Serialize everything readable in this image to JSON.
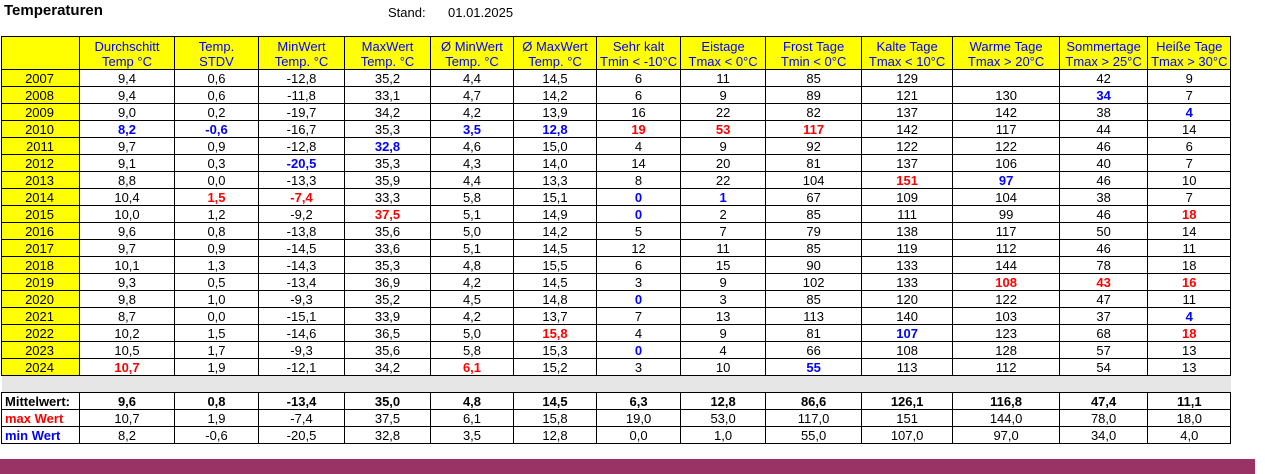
{
  "title": "Temperaturen",
  "stand_label": "Stand:",
  "stand_value": "01.01.2025",
  "headers": [
    [
      "",
      ""
    ],
    [
      "Durchschitt",
      "Temp °C"
    ],
    [
      "Temp.",
      "STDV"
    ],
    [
      "MinWert",
      "Temp. °C"
    ],
    [
      "MaxWert",
      "Temp. °C"
    ],
    [
      "Ø MinWert",
      "Temp. °C"
    ],
    [
      "Ø MaxWert",
      "Temp. °C"
    ],
    [
      "Sehr kalt",
      "Tmin < -10°C"
    ],
    [
      "Eistage",
      "Tmax < 0°C"
    ],
    [
      "Frost Tage",
      "Tmin < 0°C"
    ],
    [
      "Kalte Tage",
      "Tmax < 10°C"
    ],
    [
      "Warme Tage",
      "Tmax > 20°C"
    ],
    [
      "Sommertage",
      "Tmax > 25°C"
    ],
    [
      "Heiße Tage",
      "Tmax > 30°C"
    ]
  ],
  "rows": [
    [
      "2007",
      "9,4",
      "0,6",
      "-12,8",
      "35,2",
      "4,4",
      "14,5",
      "6",
      "11",
      "85",
      "129",
      "",
      "42",
      "9"
    ],
    [
      "2008",
      "9,4",
      "0,6",
      "-11,8",
      "33,1",
      "4,7",
      "14,2",
      "6",
      "9",
      "89",
      "121",
      "130",
      "34",
      "7"
    ],
    [
      "2009",
      "9,0",
      "0,2",
      "-19,7",
      "34,2",
      "4,2",
      "13,9",
      "16",
      "22",
      "82",
      "137",
      "142",
      "38",
      "4"
    ],
    [
      "2010",
      "8,2",
      "-0,6",
      "-16,7",
      "35,3",
      "3,5",
      "12,8",
      "19",
      "53",
      "117",
      "142",
      "117",
      "44",
      "14"
    ],
    [
      "2011",
      "9,7",
      "0,9",
      "-12,8",
      "32,8",
      "4,6",
      "15,0",
      "4",
      "9",
      "92",
      "122",
      "122",
      "46",
      "6"
    ],
    [
      "2012",
      "9,1",
      "0,3",
      "-20,5",
      "35,3",
      "4,3",
      "14,0",
      "14",
      "20",
      "81",
      "137",
      "106",
      "40",
      "7"
    ],
    [
      "2013",
      "8,8",
      "0,0",
      "-13,3",
      "35,9",
      "4,4",
      "13,3",
      "8",
      "22",
      "104",
      "151",
      "97",
      "46",
      "10"
    ],
    [
      "2014",
      "10,4",
      "1,5",
      "-7,4",
      "33,3",
      "5,8",
      "15,1",
      "0",
      "1",
      "67",
      "109",
      "104",
      "38",
      "7"
    ],
    [
      "2015",
      "10,0",
      "1,2",
      "-9,2",
      "37,5",
      "5,1",
      "14,9",
      "0",
      "2",
      "85",
      "111",
      "99",
      "46",
      "18"
    ],
    [
      "2016",
      "9,6",
      "0,8",
      "-13,8",
      "35,6",
      "5,0",
      "14,2",
      "5",
      "7",
      "79",
      "138",
      "117",
      "50",
      "14"
    ],
    [
      "2017",
      "9,7",
      "0,9",
      "-14,5",
      "33,6",
      "5,1",
      "14,5",
      "12",
      "11",
      "85",
      "119",
      "112",
      "46",
      "11"
    ],
    [
      "2018",
      "10,1",
      "1,3",
      "-14,3",
      "35,3",
      "4,8",
      "15,5",
      "6",
      "15",
      "90",
      "133",
      "144",
      "78",
      "18"
    ],
    [
      "2019",
      "9,3",
      "0,5",
      "-13,4",
      "36,9",
      "4,2",
      "14,5",
      "3",
      "9",
      "102",
      "133",
      "108",
      "43",
      "16"
    ],
    [
      "2020",
      "9,8",
      "1,0",
      "-9,3",
      "35,2",
      "4,5",
      "14,8",
      "0",
      "3",
      "85",
      "120",
      "122",
      "47",
      "11"
    ],
    [
      "2021",
      "8,7",
      "0,0",
      "-15,1",
      "33,9",
      "4,2",
      "13,7",
      "7",
      "13",
      "113",
      "140",
      "103",
      "37",
      "4"
    ],
    [
      "2022",
      "10,2",
      "1,5",
      "-14,6",
      "36,5",
      "5,0",
      "15,8",
      "4",
      "9",
      "81",
      "107",
      "123",
      "68",
      "18"
    ],
    [
      "2023",
      "10,5",
      "1,7",
      "-9,3",
      "35,6",
      "5,8",
      "15,3",
      "0",
      "4",
      "66",
      "108",
      "128",
      "57",
      "13"
    ],
    [
      "2024",
      "10,7",
      "1,9",
      "-12,1",
      "34,2",
      "6,1",
      "15,2",
      "3",
      "10",
      "55",
      "113",
      "112",
      "54",
      "13"
    ]
  ],
  "highlights": {
    "red": [
      "3-7",
      "3-8",
      "3-9",
      "7-2",
      "7-3",
      "8-4",
      "12-11",
      "12-12",
      "12-13",
      "8-13",
      "15-6",
      "17-1",
      "17-5",
      "6-10",
      "15-13"
    ],
    "blue": [
      "1-12",
      "2-13",
      "3-1",
      "3-2",
      "3-5",
      "3-6",
      "4-4",
      "5-3",
      "6-11",
      "7-7",
      "7-8",
      "8-7",
      "13-7",
      "14-13",
      "15-10",
      "16-7",
      "17-9"
    ]
  },
  "summary": {
    "mittel": [
      "Mittelwert:",
      "9,6",
      "0,8",
      "-13,4",
      "35,0",
      "4,8",
      "14,5",
      "6,3",
      "12,8",
      "86,6",
      "126,1",
      "116,8",
      "47,4",
      "11,1"
    ],
    "max": [
      "max Wert",
      "10,7",
      "1,9",
      "-7,4",
      "37,5",
      "6,1",
      "15,8",
      "19,0",
      "53,0",
      "117,0",
      "151",
      "144,0",
      "78,0",
      "18,0"
    ],
    "min": [
      "min Wert",
      "8,2",
      "-0,6",
      "-20,5",
      "32,8",
      "3,5",
      "12,8",
      "0,0",
      "1,0",
      "55,0",
      "107,0",
      "97,0",
      "34,0",
      "4,0"
    ]
  },
  "colors": {
    "header_bg": "#ffff00",
    "header_text": "#0000ff",
    "max_color": "#ff0000",
    "min_color": "#0000ff",
    "footer_bar": "#993366"
  }
}
